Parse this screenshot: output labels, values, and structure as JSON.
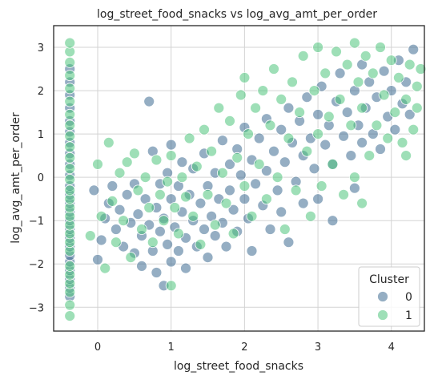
{
  "chart_data": {
    "type": "scatter",
    "title": "log_street_food_snacks vs log_avg_amt_per_order",
    "xlabel": "log_street_food_snacks",
    "ylabel": "log_avg_amt_per_order",
    "xlim": [
      -0.6,
      4.45
    ],
    "ylim": [
      -3.55,
      3.5
    ],
    "xticks": [
      0,
      1,
      2,
      3,
      4
    ],
    "yticks": [
      -3,
      -2,
      -1,
      0,
      1,
      2,
      3
    ],
    "grid": true,
    "legend": {
      "title": "Cluster",
      "placement": "bottom-right",
      "entries": [
        "0",
        "1"
      ]
    },
    "colors": {
      "cluster_0": "#3e6b91",
      "cluster_1": "#4fc57b",
      "grid": "#d3d3d3",
      "axes": "#262626"
    },
    "series": [
      {
        "name": "0",
        "color": "#3e6b91",
        "points": [
          [
            -0.38,
            -2.75
          ],
          [
            -0.38,
            -2.55
          ],
          [
            -0.38,
            -2.35
          ],
          [
            -0.38,
            -2.15
          ],
          [
            -0.38,
            -1.95
          ],
          [
            -0.38,
            -1.8
          ],
          [
            -0.38,
            -1.6
          ],
          [
            -0.38,
            -1.4
          ],
          [
            -0.38,
            -1.2
          ],
          [
            -0.38,
            -1.0
          ],
          [
            -0.38,
            -0.8
          ],
          [
            -0.38,
            -0.6
          ],
          [
            -0.38,
            -0.4
          ],
          [
            -0.38,
            -0.2
          ],
          [
            -0.38,
            0.05
          ],
          [
            -0.38,
            0.3
          ],
          [
            -0.38,
            0.55
          ],
          [
            -0.38,
            0.8
          ],
          [
            -0.38,
            1.05
          ],
          [
            -0.38,
            1.3
          ],
          [
            -0.38,
            1.6
          ],
          [
            -0.38,
            1.9
          ],
          [
            -0.38,
            2.2
          ],
          [
            -0.38,
            2.5
          ],
          [
            -0.05,
            -0.3
          ],
          [
            0.0,
            -1.9
          ],
          [
            0.05,
            -1.45
          ],
          [
            0.1,
            -0.95
          ],
          [
            0.15,
            -0.6
          ],
          [
            0.2,
            -0.2
          ],
          [
            0.25,
            -1.2
          ],
          [
            0.3,
            -0.75
          ],
          [
            0.35,
            -1.6
          ],
          [
            0.4,
            -0.4
          ],
          [
            0.45,
            -1.05
          ],
          [
            0.5,
            -1.75
          ],
          [
            0.5,
            -0.15
          ],
          [
            0.55,
            -0.85
          ],
          [
            0.6,
            -1.35
          ],
          [
            0.6,
            -2.05
          ],
          [
            0.65,
            -0.5
          ],
          [
            0.7,
            -1.1
          ],
          [
            0.7,
            1.75
          ],
          [
            0.75,
            -1.7
          ],
          [
            0.75,
            0.6
          ],
          [
            0.8,
            -0.7
          ],
          [
            0.8,
            -2.2
          ],
          [
            0.85,
            -1.25
          ],
          [
            0.85,
            -0.15
          ],
          [
            0.9,
            -0.95
          ],
          [
            0.9,
            -2.5
          ],
          [
            0.95,
            -1.55
          ],
          [
            0.95,
            0.1
          ],
          [
            1.0,
            -0.5
          ],
          [
            1.0,
            -1.95
          ],
          [
            1.0,
            0.75
          ],
          [
            1.05,
            -1.15
          ],
          [
            1.1,
            -0.2
          ],
          [
            1.1,
            -1.7
          ],
          [
            1.15,
            -0.8
          ],
          [
            1.15,
            0.35
          ],
          [
            1.2,
            -1.4
          ],
          [
            1.2,
            -2.1
          ],
          [
            1.25,
            -0.4
          ],
          [
            1.3,
            -1.0
          ],
          [
            1.3,
            0.2
          ],
          [
            1.35,
            -1.6
          ],
          [
            1.4,
            -0.6
          ],
          [
            1.45,
            -1.2
          ],
          [
            1.45,
            0.55
          ],
          [
            1.5,
            -0.2
          ],
          [
            1.5,
            -1.85
          ],
          [
            1.55,
            -0.9
          ],
          [
            1.6,
            0.1
          ],
          [
            1.6,
            -1.35
          ],
          [
            1.65,
            -0.5
          ],
          [
            1.7,
            0.85
          ],
          [
            1.7,
            -1.05
          ],
          [
            1.75,
            -1.6
          ],
          [
            1.8,
            0.3
          ],
          [
            1.8,
            -0.3
          ],
          [
            1.85,
            -0.75
          ],
          [
            1.9,
            0.65
          ],
          [
            1.9,
            -1.25
          ],
          [
            1.95,
            0.05
          ],
          [
            2.0,
            -0.5
          ],
          [
            2.0,
            1.15
          ],
          [
            2.05,
            -0.95
          ],
          [
            2.1,
            0.4
          ],
          [
            2.1,
            -1.7
          ],
          [
            2.15,
            -0.15
          ],
          [
            2.2,
            0.9
          ],
          [
            2.25,
            -0.65
          ],
          [
            2.3,
            1.35
          ],
          [
            2.3,
            0.15
          ],
          [
            2.35,
            -1.2
          ],
          [
            2.4,
            0.6
          ],
          [
            2.45,
            -0.3
          ],
          [
            2.5,
            1.1
          ],
          [
            2.5,
            -0.8
          ],
          [
            2.55,
            0.35
          ],
          [
            2.6,
            1.6
          ],
          [
            2.6,
            -1.5
          ],
          [
            2.65,
            0.8
          ],
          [
            2.7,
            -0.1
          ],
          [
            2.75,
            1.3
          ],
          [
            2.8,
            0.5
          ],
          [
            2.8,
            -0.6
          ],
          [
            2.85,
            1.85
          ],
          [
            2.9,
            0.9
          ],
          [
            2.95,
            0.2
          ],
          [
            3.0,
            1.45
          ],
          [
            3.0,
            -0.5
          ],
          [
            3.05,
            2.1
          ],
          [
            3.1,
            0.75
          ],
          [
            3.15,
            1.2
          ],
          [
            3.2,
            -1.0
          ],
          [
            3.2,
            0.3
          ],
          [
            3.25,
            1.75
          ],
          [
            3.3,
            2.4
          ],
          [
            3.35,
            0.95
          ],
          [
            3.4,
            1.5
          ],
          [
            3.45,
            0.5
          ],
          [
            3.5,
            2.0
          ],
          [
            3.5,
            -0.25
          ],
          [
            3.55,
            1.2
          ],
          [
            3.6,
            2.6
          ],
          [
            3.6,
            0.8
          ],
          [
            3.65,
            1.6
          ],
          [
            3.7,
            2.2
          ],
          [
            3.75,
            1.0
          ],
          [
            3.8,
            1.85
          ],
          [
            3.85,
            0.65
          ],
          [
            3.9,
            2.45
          ],
          [
            3.95,
            1.4
          ],
          [
            4.0,
            2.0
          ],
          [
            4.05,
            1.1
          ],
          [
            4.1,
            2.7
          ],
          [
            4.15,
            1.7
          ],
          [
            4.2,
            2.2
          ],
          [
            4.25,
            1.45
          ],
          [
            4.3,
            2.95
          ]
        ]
      },
      {
        "name": "1",
        "color": "#4fc57b",
        "points": [
          [
            -0.38,
            -3.2
          ],
          [
            -0.38,
            -2.95
          ],
          [
            -0.38,
            -2.65
          ],
          [
            -0.38,
            -2.45
          ],
          [
            -0.38,
            -2.25
          ],
          [
            -0.38,
            -2.05
          ],
          [
            -0.38,
            -1.7
          ],
          [
            -0.38,
            -1.5
          ],
          [
            -0.38,
            -1.3
          ],
          [
            -0.38,
            -1.1
          ],
          [
            -0.38,
            -0.9
          ],
          [
            -0.38,
            -0.7
          ],
          [
            -0.38,
            -0.5
          ],
          [
            -0.38,
            -0.3
          ],
          [
            -0.38,
            -0.05
          ],
          [
            -0.38,
            0.2
          ],
          [
            -0.38,
            0.45
          ],
          [
            -0.38,
            0.7
          ],
          [
            -0.38,
            0.95
          ],
          [
            -0.38,
            1.2
          ],
          [
            -0.38,
            1.45
          ],
          [
            -0.38,
            1.75
          ],
          [
            -0.38,
            2.05
          ],
          [
            -0.38,
            2.35
          ],
          [
            -0.38,
            2.65
          ],
          [
            -0.38,
            2.9
          ],
          [
            -0.38,
            3.1
          ],
          [
            -0.1,
            -1.35
          ],
          [
            0.0,
            0.3
          ],
          [
            0.05,
            -0.9
          ],
          [
            0.1,
            -2.1
          ],
          [
            0.15,
            0.8
          ],
          [
            0.2,
            -0.55
          ],
          [
            0.25,
            -1.5
          ],
          [
            0.3,
            0.1
          ],
          [
            0.35,
            -1.0
          ],
          [
            0.4,
            0.35
          ],
          [
            0.45,
            -1.85
          ],
          [
            0.5,
            0.55
          ],
          [
            0.55,
            -0.3
          ],
          [
            0.6,
            -1.2
          ],
          [
            0.65,
            0.0
          ],
          [
            0.7,
            -0.7
          ],
          [
            0.75,
            -1.5
          ],
          [
            0.8,
            0.4
          ],
          [
            0.85,
            -0.4
          ],
          [
            0.9,
            -1.0
          ],
          [
            0.95,
            -0.1
          ],
          [
            1.0,
            -2.5
          ],
          [
            1.0,
            0.5
          ],
          [
            1.05,
            -0.7
          ],
          [
            1.1,
            -1.3
          ],
          [
            1.15,
            0.0
          ],
          [
            1.2,
            -0.45
          ],
          [
            1.25,
            0.9
          ],
          [
            1.3,
            -0.9
          ],
          [
            1.35,
            0.25
          ],
          [
            1.4,
            -1.55
          ],
          [
            1.45,
            1.1
          ],
          [
            1.5,
            -0.4
          ],
          [
            1.55,
            0.6
          ],
          [
            1.6,
            -1.1
          ],
          [
            1.65,
            1.6
          ],
          [
            1.7,
            0.1
          ],
          [
            1.75,
            -0.6
          ],
          [
            1.8,
            1.3
          ],
          [
            1.85,
            -1.3
          ],
          [
            1.9,
            0.45
          ],
          [
            1.95,
            1.9
          ],
          [
            2.0,
            -0.2
          ],
          [
            2.0,
            2.3
          ],
          [
            2.05,
            1.0
          ],
          [
            2.1,
            -0.9
          ],
          [
            2.15,
            1.6
          ],
          [
            2.2,
            0.3
          ],
          [
            2.25,
            2.0
          ],
          [
            2.3,
            -0.5
          ],
          [
            2.35,
            1.2
          ],
          [
            2.4,
            2.5
          ],
          [
            2.45,
            0.0
          ],
          [
            2.5,
            1.8
          ],
          [
            2.55,
            -1.2
          ],
          [
            2.6,
            0.9
          ],
          [
            2.65,
            2.2
          ],
          [
            2.7,
            -0.3
          ],
          [
            2.75,
            1.5
          ],
          [
            2.8,
            2.8
          ],
          [
            2.85,
            0.6
          ],
          [
            2.9,
            -0.9
          ],
          [
            2.95,
            2.0
          ],
          [
            3.0,
            1.0
          ],
          [
            3.0,
            3.0
          ],
          [
            3.05,
            -0.2
          ],
          [
            3.1,
            2.4
          ],
          [
            3.15,
            1.4
          ],
          [
            3.2,
            0.3
          ],
          [
            3.25,
            2.9
          ],
          [
            3.3,
            1.8
          ],
          [
            3.35,
            -0.4
          ],
          [
            3.4,
            2.6
          ],
          [
            3.45,
            1.2
          ],
          [
            3.5,
            3.1
          ],
          [
            3.5,
            0.0
          ],
          [
            3.55,
            2.2
          ],
          [
            3.6,
            -0.6
          ],
          [
            3.6,
            1.6
          ],
          [
            3.65,
            2.8
          ],
          [
            3.7,
            0.5
          ],
          [
            3.75,
            2.4
          ],
          [
            3.8,
            1.2
          ],
          [
            3.85,
            3.0
          ],
          [
            3.9,
            1.9
          ],
          [
            3.95,
            0.9
          ],
          [
            4.0,
            2.7
          ],
          [
            4.05,
            1.5
          ],
          [
            4.1,
            2.3
          ],
          [
            4.15,
            0.8
          ],
          [
            4.2,
            1.8
          ],
          [
            4.2,
            0.5
          ],
          [
            4.25,
            2.6
          ],
          [
            4.3,
            1.1
          ],
          [
            4.35,
            2.1
          ],
          [
            4.4,
            2.5
          ],
          [
            4.35,
            1.6
          ]
        ]
      }
    ]
  }
}
